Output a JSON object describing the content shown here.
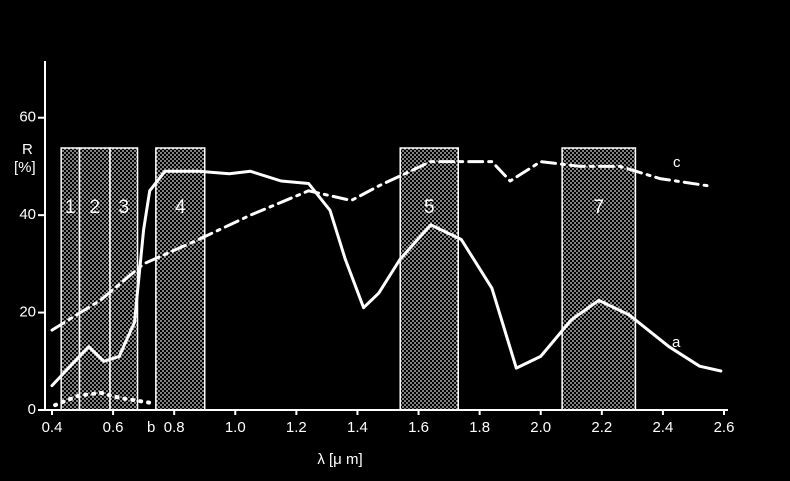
{
  "chart_data": {
    "type": "line",
    "ylabel": "R",
    "yunit": "[%]",
    "xlabel": "λ [μ m]",
    "xlim": [
      0.4,
      2.6
    ],
    "ylim": [
      0,
      70
    ],
    "xticks": [
      0.4,
      0.6,
      0.8,
      {
        "value": 1,
        "label": "1.0"
      },
      1.2,
      1.4,
      1.6,
      1.8,
      {
        "value": 2,
        "label": "2.0"
      },
      2.2,
      2.4,
      2.6
    ],
    "yticks": [
      0,
      20,
      40,
      60
    ],
    "bands": [
      {
        "label": "1",
        "from": 0.43,
        "to": 0.49
      },
      {
        "label": "2",
        "from": 0.49,
        "to": 0.59
      },
      {
        "label": "3",
        "from": 0.59,
        "to": 0.68
      },
      {
        "label": "4",
        "from": 0.74,
        "to": 0.9
      },
      {
        "label": "5",
        "from": 1.54,
        "to": 1.73
      },
      {
        "label": "7",
        "from": 2.07,
        "to": 2.31
      }
    ],
    "series": [
      {
        "name": "a",
        "color": "#ffffff",
        "style": "solid",
        "x": [
          0.4,
          0.49,
          0.52,
          0.57,
          0.62,
          0.67,
          0.7,
          0.72,
          0.77,
          0.88,
          0.98,
          1.05,
          1.15,
          1.24,
          1.31,
          1.36,
          1.42,
          1.47,
          1.54,
          1.64,
          1.74,
          1.84,
          1.92,
          2.0,
          2.1,
          2.19,
          2.29,
          2.42,
          2.52,
          2.59
        ],
        "values": [
          5,
          11,
          13,
          10,
          11,
          18,
          37,
          45,
          49,
          49,
          48.5,
          49,
          47,
          46.5,
          41,
          31,
          21,
          24,
          31,
          38,
          35,
          25,
          8.6,
          11,
          18.5,
          22.5,
          19.5,
          13,
          9,
          8
        ]
      },
      {
        "name": "b",
        "color": "#ffffff",
        "style": "dotted",
        "x": [
          0.41,
          0.49,
          0.56,
          0.62,
          0.72
        ],
        "values": [
          1,
          3,
          3.5,
          2.5,
          1.5
        ]
      },
      {
        "name": "c",
        "color": "#ffffff",
        "style": "dashdot",
        "x": [
          0.4,
          0.56,
          0.7,
          0.88,
          1.05,
          1.24,
          1.38,
          1.47,
          1.64,
          1.84,
          1.9,
          2.0,
          2.13,
          2.26,
          2.39,
          2.55
        ],
        "values": [
          16.4,
          22.6,
          30,
          35,
          40,
          45,
          43,
          46,
          51,
          51,
          47,
          51,
          50,
          50,
          47.5,
          46
        ]
      }
    ]
  }
}
